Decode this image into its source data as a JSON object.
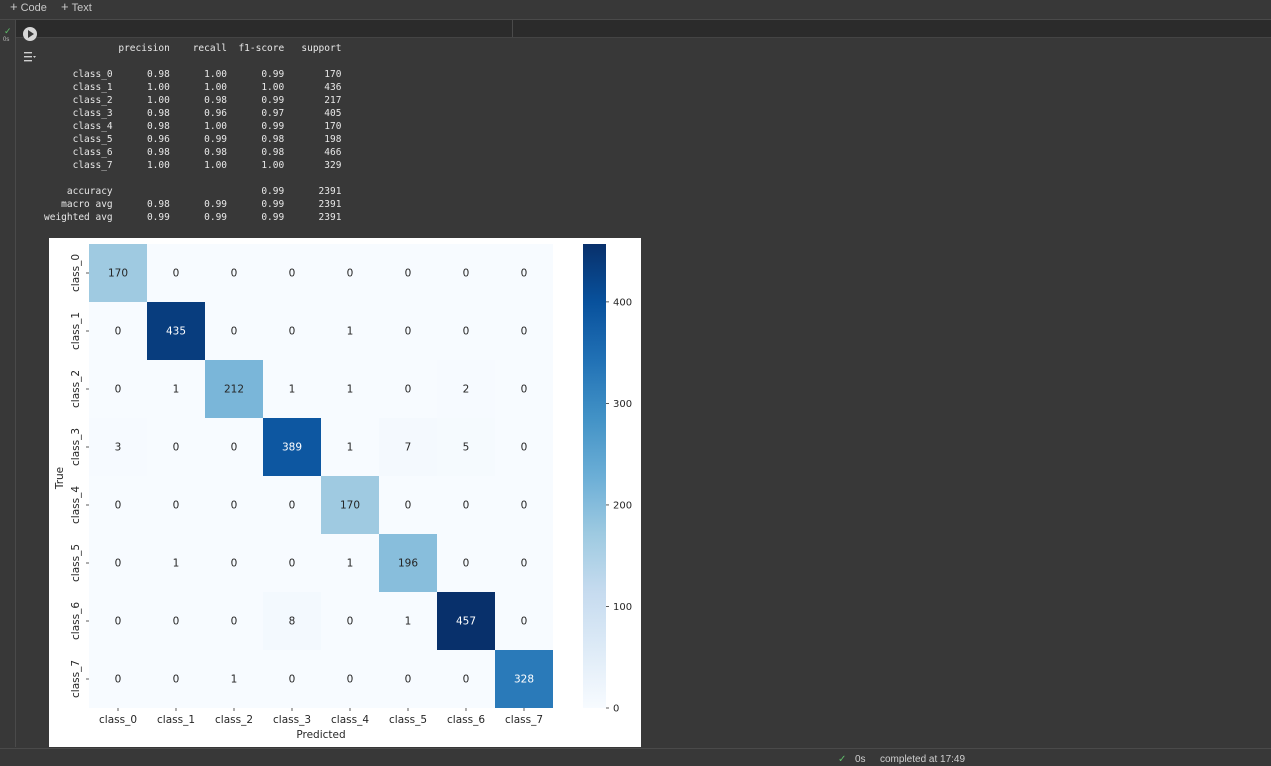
{
  "toolbar": {
    "add_code_label": "Code",
    "add_text_label": "Text"
  },
  "cell": {
    "exec_status": "✓",
    "exec_time": "0s"
  },
  "report": {
    "header": [
      "",
      "precision",
      "recall",
      "f1-score",
      "support"
    ],
    "rows": [
      [
        "class_0",
        "0.98",
        "1.00",
        "0.99",
        "170"
      ],
      [
        "class_1",
        "1.00",
        "1.00",
        "1.00",
        "436"
      ],
      [
        "class_2",
        "1.00",
        "0.98",
        "0.99",
        "217"
      ],
      [
        "class_3",
        "0.98",
        "0.96",
        "0.97",
        "405"
      ],
      [
        "class_4",
        "0.98",
        "1.00",
        "0.99",
        "170"
      ],
      [
        "class_5",
        "0.96",
        "0.99",
        "0.98",
        "198"
      ],
      [
        "class_6",
        "0.98",
        "0.98",
        "0.98",
        "466"
      ],
      [
        "class_7",
        "1.00",
        "1.00",
        "1.00",
        "329"
      ]
    ],
    "summary": [
      [
        "accuracy",
        "",
        "",
        "0.99",
        "2391"
      ],
      [
        "macro avg",
        "0.98",
        "0.99",
        "0.99",
        "2391"
      ],
      [
        "weighted avg",
        "0.99",
        "0.99",
        "0.99",
        "2391"
      ]
    ]
  },
  "chart_data": {
    "type": "heatmap",
    "title": "",
    "xlabel": "Predicted",
    "ylabel": "True",
    "x_categories": [
      "class_0",
      "class_1",
      "class_2",
      "class_3",
      "class_4",
      "class_5",
      "class_6",
      "class_7"
    ],
    "y_categories": [
      "class_0",
      "class_1",
      "class_2",
      "class_3",
      "class_4",
      "class_5",
      "class_6",
      "class_7"
    ],
    "values": [
      [
        170,
        0,
        0,
        0,
        0,
        0,
        0,
        0
      ],
      [
        0,
        435,
        0,
        0,
        1,
        0,
        0,
        0
      ],
      [
        0,
        1,
        212,
        1,
        1,
        0,
        2,
        0
      ],
      [
        3,
        0,
        0,
        389,
        1,
        7,
        5,
        0
      ],
      [
        0,
        0,
        0,
        0,
        170,
        0,
        0,
        0
      ],
      [
        0,
        1,
        0,
        0,
        1,
        196,
        0,
        0
      ],
      [
        0,
        0,
        0,
        8,
        0,
        1,
        457,
        0
      ],
      [
        0,
        0,
        1,
        0,
        0,
        0,
        0,
        328
      ]
    ],
    "colormap": "Blues",
    "vmin": 0,
    "vmax": 457,
    "colorbar_ticks": [
      0,
      100,
      200,
      300,
      400
    ]
  },
  "status": {
    "check": "✓",
    "time": "0s",
    "completed": "completed at 17:49"
  }
}
